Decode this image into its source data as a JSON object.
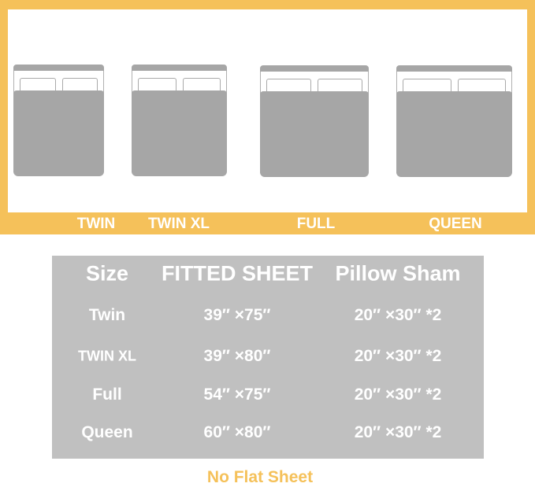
{
  "beds": [
    {
      "label": "TWIN"
    },
    {
      "label": "TWIN XL"
    },
    {
      "label": "FULL"
    },
    {
      "label": "QUEEN"
    }
  ],
  "table": {
    "headers": [
      "Size",
      "FITTED SHEET",
      "Pillow Sham"
    ],
    "rows": [
      [
        "Twin",
        "39″ ×75″",
        "20″ ×30″ *2"
      ],
      [
        "TWIN XL",
        "39″ ×80″",
        "20″ ×30″ *2"
      ],
      [
        "Full",
        "54″ ×75″",
        "20″ ×30″ *2"
      ],
      [
        "Queen",
        "60″ ×80″",
        "20″ ×30″ *2"
      ]
    ]
  },
  "note": "No Flat Sheet",
  "colors": {
    "accent": "#f5c15a",
    "table": "#c0c0c0",
    "bed": "#a6a6a6"
  }
}
